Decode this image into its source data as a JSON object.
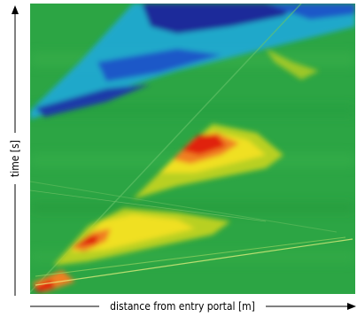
{
  "chart_data": {
    "type": "heatmap",
    "title": "",
    "xlabel": "distance from entry portal [m]",
    "ylabel": "time [s]",
    "grid": false,
    "legend": "none",
    "colorscale": [
      "#1a2a9a",
      "#1f5fd0",
      "#1fa0d8",
      "#22b04a",
      "#2aa040",
      "#b8d020",
      "#f0e020",
      "#f08020",
      "#e02010"
    ],
    "background_color": "#2aa040"
  }
}
